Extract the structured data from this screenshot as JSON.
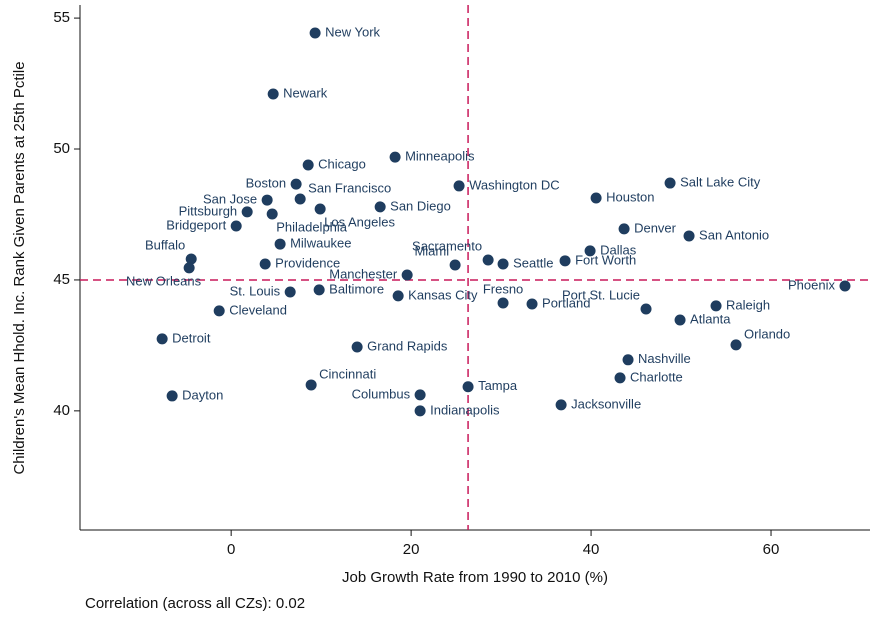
{
  "chart_data": {
    "type": "scatter",
    "xlabel": "Job Growth Rate from 1990 to 2010 (%)",
    "ylabel": "Children's Mean Hhold. Inc. Rank Given Parents at 25th Pctile",
    "annotation": "Correlation (across all CZs): 0.02",
    "xlim": [
      -16.8,
      71
    ],
    "ylim": [
      35.45,
      55.5
    ],
    "xticks": [
      0,
      20,
      40,
      60
    ],
    "yticks": [
      40,
      45,
      50,
      55
    ],
    "reference_lines": {
      "x": 26.33,
      "y": 45,
      "color": "#c8195a"
    },
    "series": [
      {
        "color": "#1f3d5f",
        "labels": [
          "New York",
          "Newark",
          "Chicago",
          "Minneapolis",
          "Boston",
          "San Francisco",
          "San Jose",
          "Washington DC",
          "Salt Lake City",
          "Houston",
          "San Diego",
          "Los Angeles",
          "Pittsburgh",
          "Philadelphia",
          "Bridgeport",
          "Denver",
          "San Antonio",
          "Milwaukee",
          "Dallas",
          "Buffalo",
          "New Orleans",
          "Providence",
          "Miami",
          "Sacramento",
          "Seattle",
          "Fort Worth",
          "Manchester",
          "Phoenix",
          "St. Louis",
          "Baltimore",
          "Kansas City",
          "Fresno",
          "Portland",
          "Port St. Lucie",
          "Raleigh",
          "Cleveland",
          "Atlanta",
          "Detroit",
          "Orlando",
          "Grand Rapids",
          "Nashville",
          "Charlotte",
          "Cincinnati",
          "Tampa",
          "Columbus",
          "Dayton",
          "Jacksonville",
          "Indianapolis"
        ],
        "x": [
          9.33,
          4.67,
          8.56,
          18.22,
          7.22,
          7.67,
          4.0,
          25.33,
          48.78,
          40.56,
          16.56,
          9.89,
          1.78,
          4.56,
          0.56,
          43.67,
          50.89,
          5.44,
          39.89,
          -4.44,
          -4.67,
          3.78,
          24.89,
          28.56,
          30.22,
          37.11,
          19.56,
          68.22,
          6.56,
          9.78,
          18.56,
          30.22,
          33.44,
          46.11,
          53.89,
          -1.33,
          49.89,
          -7.67,
          56.11,
          14.0,
          44.11,
          43.22,
          8.89,
          26.33,
          21.0,
          -6.56,
          36.67,
          21.0
        ],
        "values": [
          54.43,
          52.1,
          49.39,
          49.69,
          48.66,
          48.09,
          48.05,
          48.59,
          48.7,
          48.13,
          47.79,
          47.71,
          47.6,
          47.52,
          47.06,
          46.95,
          46.68,
          46.37,
          46.11,
          45.8,
          45.46,
          45.61,
          45.57,
          45.76,
          45.61,
          45.73,
          45.19,
          44.77,
          44.54,
          44.62,
          44.39,
          44.12,
          44.08,
          43.89,
          44.01,
          43.82,
          43.47,
          42.75,
          42.52,
          42.44,
          41.95,
          41.26,
          40.99,
          40.92,
          40.61,
          40.57,
          40.23,
          40.0
        ]
      }
    ]
  }
}
